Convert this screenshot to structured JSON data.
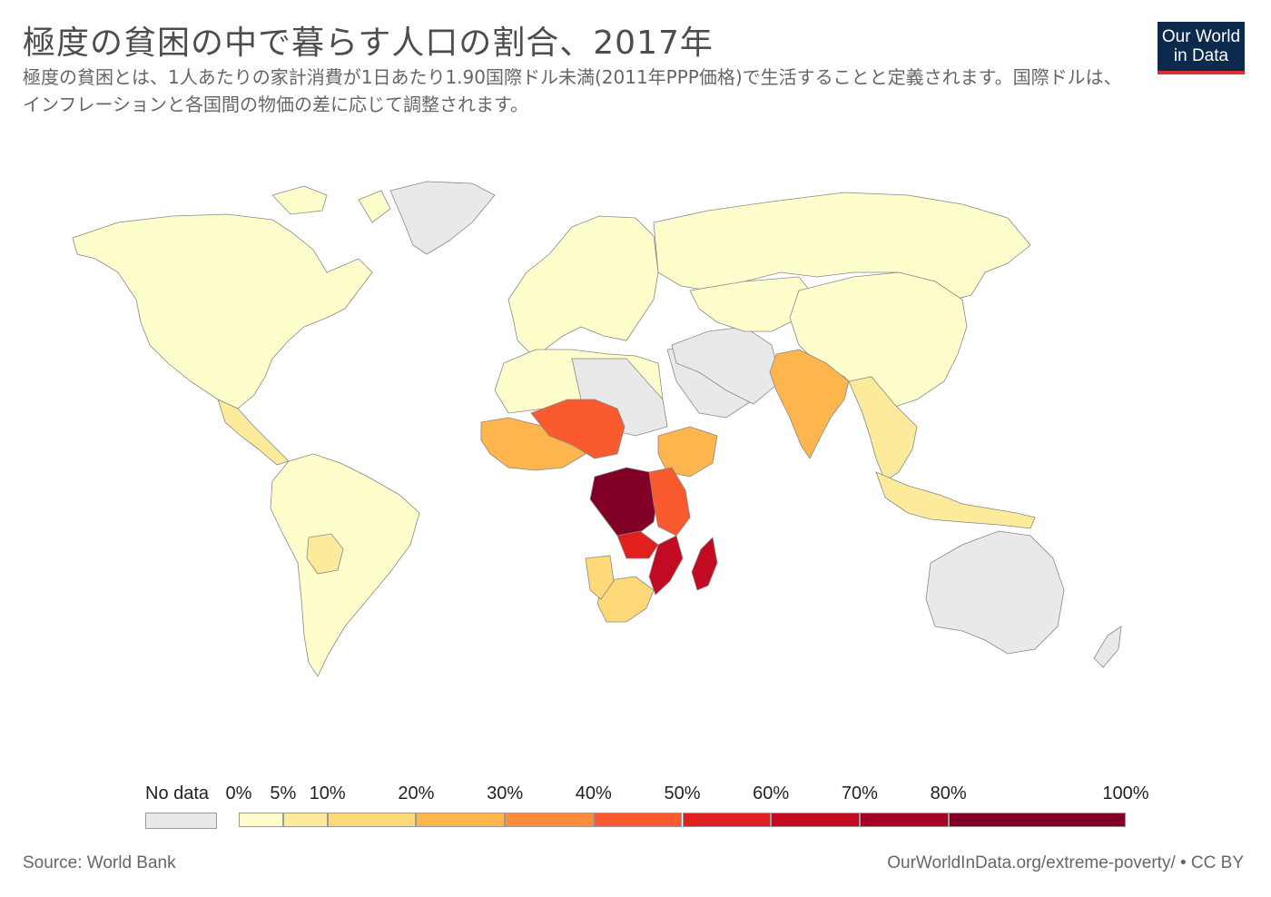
{
  "title": "極度の貧困の中で暮らす人口の割合、2017年",
  "subtitle": "極度の貧困とは、1人あたりの家計消費が1日あたり1.90国際ドル未満(2011年PPP価格)で生活することと定義されます。国際ドルは、インフレーションと各国間の物価の差に応じて調整されます。",
  "logo": {
    "line1": "Our World",
    "line2": "in Data",
    "bg": "#0c2a4d",
    "accent": "#d7322f"
  },
  "legend": {
    "no_data_label": "No data",
    "no_data_color": "#e9e9e9",
    "ticks": [
      "0%",
      "5%",
      "10%",
      "20%",
      "30%",
      "40%",
      "50%",
      "60%",
      "70%",
      "80%",
      "100%"
    ],
    "tick_values": [
      0,
      5,
      10,
      20,
      30,
      40,
      50,
      60,
      70,
      80,
      100
    ],
    "colors": [
      "#fefecd",
      "#fdeb9c",
      "#fed977",
      "#feb54d",
      "#fd8d3c",
      "#fb5a2e",
      "#e21f1f",
      "#c20a22",
      "#a50026",
      "#800026"
    ]
  },
  "regions": [
    {
      "name": "North America",
      "color": "#fefecd"
    },
    {
      "name": "Greenland",
      "color": "#e9e9e9"
    },
    {
      "name": "Central America",
      "color": "#fdeb9c"
    },
    {
      "name": "South America",
      "color": "#fefecd"
    },
    {
      "name": "Bolivia",
      "color": "#fdeb9c"
    },
    {
      "name": "Europe",
      "color": "#fefecd"
    },
    {
      "name": "Russia",
      "color": "#fefecd"
    },
    {
      "name": "North Africa",
      "color": "#fefecd"
    },
    {
      "name": "Sahara no data",
      "color": "#e9e9e9"
    },
    {
      "name": "Middle East",
      "color": "#e9e9e9"
    },
    {
      "name": "Central Asia",
      "color": "#fefecd"
    },
    {
      "name": "China",
      "color": "#fefecd"
    },
    {
      "name": "India",
      "color": "#feb54d"
    },
    {
      "name": "Southeast Asia",
      "color": "#fdeb9c"
    },
    {
      "name": "Indonesia",
      "color": "#fdeb9c"
    },
    {
      "name": "Australia",
      "color": "#e9e9e9"
    },
    {
      "name": "West Africa",
      "color": "#feb54d"
    },
    {
      "name": "Sahel",
      "color": "#fb5a2e"
    },
    {
      "name": "Ethiopia",
      "color": "#feb54d"
    },
    {
      "name": "DR Congo",
      "color": "#800026"
    },
    {
      "name": "East Africa",
      "color": "#fb5a2e"
    },
    {
      "name": "Zambia",
      "color": "#e21f1f"
    },
    {
      "name": "Mozambique",
      "color": "#c20a22"
    },
    {
      "name": "Madagascar",
      "color": "#c20a22"
    },
    {
      "name": "Southern Africa",
      "color": "#fed977"
    },
    {
      "name": "Namibia",
      "color": "#fed977"
    }
  ],
  "footer": {
    "source": "Source: World Bank",
    "url": "OurWorldInData.org/extreme-poverty/ • CC BY"
  }
}
